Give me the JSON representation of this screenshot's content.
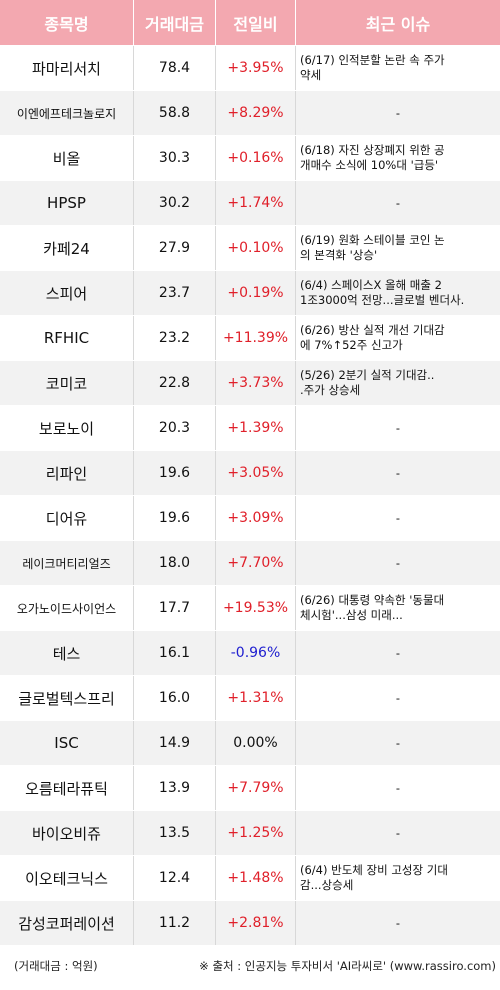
{
  "header": {
    "name": "종목명",
    "volume": "거래대금",
    "change": "전일비",
    "issue": "최근 이슈"
  },
  "rows": [
    {
      "name": "파마리서치",
      "volume": "78.4",
      "change": "+3.95%",
      "dir": "up",
      "issue": "(6/17) 인적분할 논란 속 주가\n약세"
    },
    {
      "name": "이엔에프테크놀로지",
      "volume": "58.8",
      "change": "+8.29%",
      "dir": "up",
      "issue": "-"
    },
    {
      "name": "비올",
      "volume": "30.3",
      "change": "+0.16%",
      "dir": "up",
      "issue": "(6/18) 자진 상장폐지 위한 공\n개매수 소식에 10%대 '급등'"
    },
    {
      "name": "HPSP",
      "volume": "30.2",
      "change": "+1.74%",
      "dir": "up",
      "issue": "-"
    },
    {
      "name": "카페24",
      "volume": "27.9",
      "change": "+0.10%",
      "dir": "up",
      "issue": "(6/19) 원화 스테이블 코인 논\n의 본격화 '상승'"
    },
    {
      "name": "스피어",
      "volume": "23.7",
      "change": "+0.19%",
      "dir": "up",
      "issue": "(6/4) 스페이스X 올해 매출 2\n1조3000억 전망...글로벌 벤더사."
    },
    {
      "name": "RFHIC",
      "volume": "23.2",
      "change": "+11.39%",
      "dir": "up",
      "issue": "(6/26) 방산 실적 개선 기대감\n에 7%↑52주 신고가"
    },
    {
      "name": "코미코",
      "volume": "22.8",
      "change": "+3.73%",
      "dir": "up",
      "issue": "(5/26) 2분기 실적 기대감..\n.주가 상승세"
    },
    {
      "name": "보로노이",
      "volume": "20.3",
      "change": "+1.39%",
      "dir": "up",
      "issue": "-"
    },
    {
      "name": "리파인",
      "volume": "19.6",
      "change": "+3.05%",
      "dir": "up",
      "issue": "-"
    },
    {
      "name": "디어유",
      "volume": "19.6",
      "change": "+3.09%",
      "dir": "up",
      "issue": "-"
    },
    {
      "name": "레이크머티리얼즈",
      "volume": "18.0",
      "change": "+7.70%",
      "dir": "up",
      "issue": "-"
    },
    {
      "name": "오가노이드사이언스",
      "volume": "17.7",
      "change": "+19.53%",
      "dir": "up",
      "issue": "(6/26) 대통령 약속한 '동물대\n체시험'...삼성 미래..."
    },
    {
      "name": "테스",
      "volume": "16.1",
      "change": "-0.96%",
      "dir": "dn",
      "issue": "-"
    },
    {
      "name": "글로벌텍스프리",
      "volume": "16.0",
      "change": "+1.31%",
      "dir": "up",
      "issue": "-"
    },
    {
      "name": "ISC",
      "volume": "14.9",
      "change": "0.00%",
      "dir": "flat",
      "issue": "-"
    },
    {
      "name": "오름테라퓨틱",
      "volume": "13.9",
      "change": "+7.79%",
      "dir": "up",
      "issue": "-"
    },
    {
      "name": "바이오비쥬",
      "volume": "13.5",
      "change": "+1.25%",
      "dir": "up",
      "issue": "-"
    },
    {
      "name": "이오테크닉스",
      "volume": "12.4",
      "change": "+1.48%",
      "dir": "up",
      "issue": "(6/4) 반도체 장비 고성장 기대\n감...상승세"
    },
    {
      "name": "감성코퍼레이션",
      "volume": "11.2",
      "change": "+2.81%",
      "dir": "up",
      "issue": "-"
    }
  ],
  "footer": {
    "unit": "(거래대금 : 억원)",
    "source": "※ 출처 : 인공지능 투자비서 'AI라씨로' (www.rassiro.com)"
  },
  "colors": {
    "header_bg": "#f3a8b0",
    "up": "#e0202a",
    "down": "#2020d0",
    "stripe": "#f2f2f2"
  }
}
